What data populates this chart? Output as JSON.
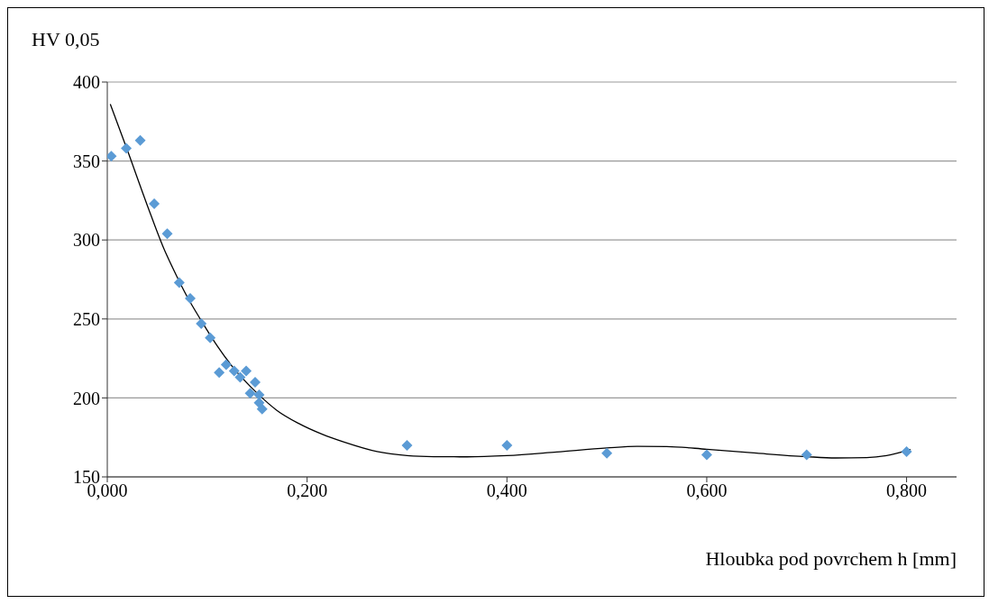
{
  "chart_data": {
    "type": "scatter",
    "ylabel": "HV 0,05",
    "xlabel": "Hloubka pod povrchem h [mm]",
    "xlim": [
      0,
      0.85
    ],
    "xticks": [
      {
        "value": 0,
        "label": "0,000"
      },
      {
        "value": 0.2,
        "label": "0,200"
      },
      {
        "value": 0.4,
        "label": "0,400"
      },
      {
        "value": 0.6,
        "label": "0,600"
      },
      {
        "value": 0.8,
        "label": "0,800"
      }
    ],
    "ylim": [
      150,
      400
    ],
    "yticks": [
      150,
      200,
      250,
      300,
      350,
      400
    ],
    "grid": "y",
    "marker": "diamond",
    "legend": false,
    "series": [
      {
        "color": "#5b9bd5",
        "x": [
          0.004,
          0.019,
          0.033,
          0.047,
          0.06,
          0.072,
          0.083,
          0.094,
          0.103,
          0.112,
          0.119,
          0.127,
          0.133,
          0.139,
          0.143,
          0.148,
          0.152,
          0.152,
          0.155,
          0.3,
          0.4,
          0.5,
          0.6,
          0.7,
          0.8
        ],
        "values": [
          353,
          358,
          363,
          323,
          304,
          273,
          263,
          247,
          238,
          216,
          221,
          217,
          213,
          217,
          203,
          210,
          202,
          197,
          193,
          170,
          170,
          165,
          164,
          164,
          166
        ]
      },
      {
        "type": "line",
        "color": "#000000",
        "marker": "none",
        "x": [
          0.003,
          0.02,
          0.04,
          0.057,
          0.065,
          0.08,
          0.094,
          0.11,
          0.125,
          0.15,
          0.17,
          0.191,
          0.215,
          0.237,
          0.27,
          0.3,
          0.327,
          0.36,
          0.4,
          0.45,
          0.5,
          0.53,
          0.56,
          0.6,
          0.65,
          0.7,
          0.729,
          0.76,
          0.78,
          0.804
        ],
        "values": [
          386,
          357,
          322,
          294,
          283,
          264,
          249,
          233,
          220,
          203,
          192,
          184,
          177,
          172,
          166,
          163.5,
          162.8,
          162.7,
          163.5,
          165.8,
          168.3,
          169.3,
          169.2,
          167.5,
          165,
          162.8,
          162,
          162.2,
          163.5,
          167.3
        ]
      }
    ]
  }
}
